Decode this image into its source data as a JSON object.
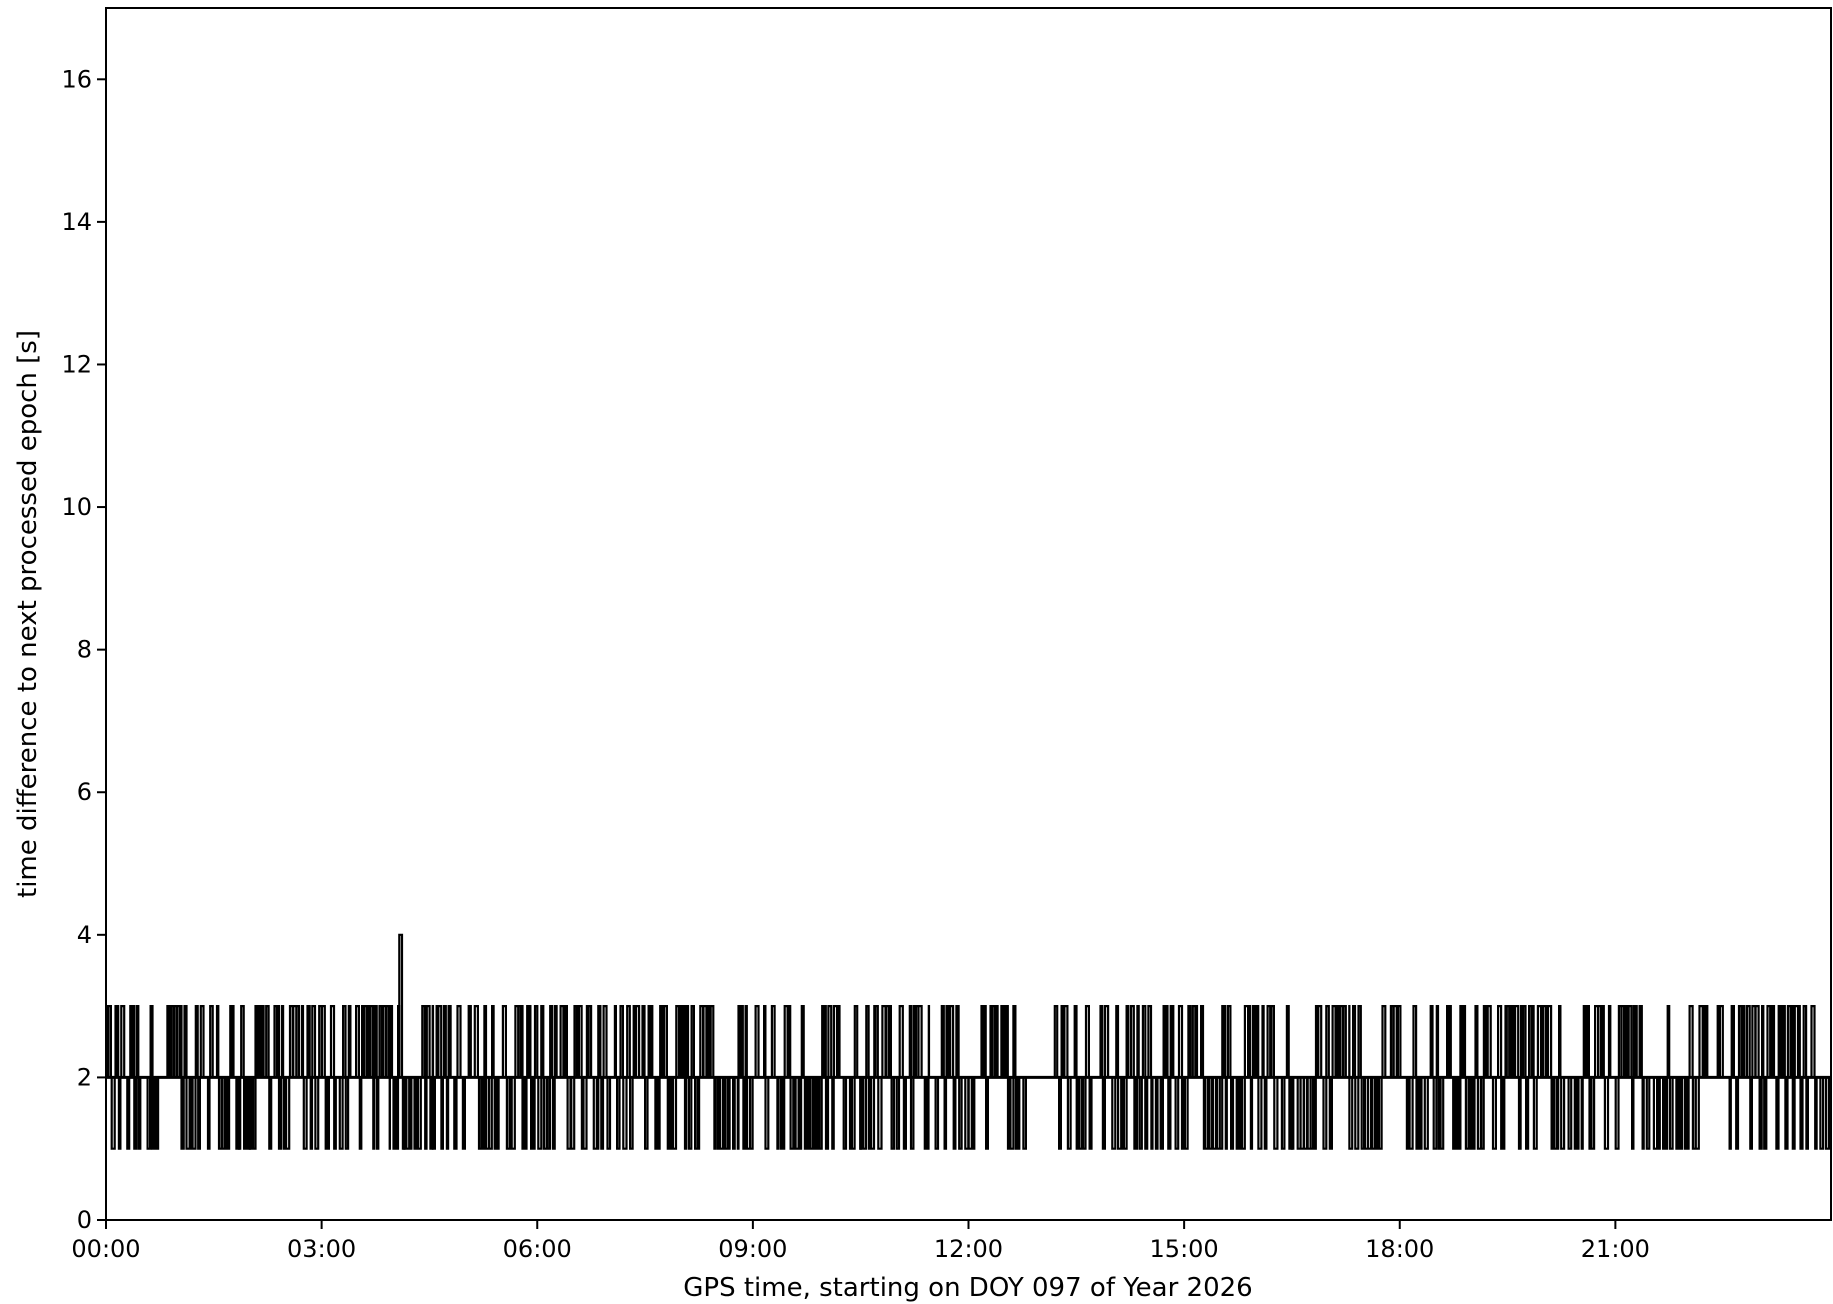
{
  "chart_data": {
    "type": "line",
    "title": "",
    "xlabel": "GPS time, starting on DOY 097 of Year 2026",
    "ylabel": "time difference to next processed epoch [s]",
    "xlim_hours": [
      0,
      24
    ],
    "ylim": [
      0,
      17
    ],
    "x_ticks": [
      {
        "value": 0,
        "label": "00:00"
      },
      {
        "value": 3,
        "label": "03:00"
      },
      {
        "value": 6,
        "label": "06:00"
      },
      {
        "value": 9,
        "label": "09:00"
      },
      {
        "value": 12,
        "label": "12:00"
      },
      {
        "value": 15,
        "label": "15:00"
      },
      {
        "value": 18,
        "label": "18:00"
      },
      {
        "value": 21,
        "label": "21:00"
      }
    ],
    "y_ticks": [
      {
        "value": 0,
        "label": "0"
      },
      {
        "value": 2,
        "label": "2"
      },
      {
        "value": 4,
        "label": "4"
      },
      {
        "value": 6,
        "label": "6"
      },
      {
        "value": 8,
        "label": "8"
      },
      {
        "value": 10,
        "label": "10"
      },
      {
        "value": 12,
        "label": "12"
      },
      {
        "value": 14,
        "label": "14"
      },
      {
        "value": 16,
        "label": "16"
      }
    ],
    "grid": false,
    "legend": "none",
    "line_color": "#000000",
    "series": [
      {
        "baseline_value": 2,
        "values_range": [
          1,
          4
        ],
        "segments": [
          {
            "start": 0.0,
            "end": 0.15,
            "high": 3,
            "low": 1
          },
          {
            "start": 0.15,
            "end": 0.45,
            "high": 3,
            "low": 1
          },
          {
            "start": 0.45,
            "end": 0.55,
            "high": 2,
            "low": 1
          },
          {
            "start": 0.55,
            "end": 0.62,
            "high": 3,
            "low": 1
          },
          {
            "start": 0.62,
            "end": 1.05,
            "high": 3,
            "low": 1
          },
          {
            "start": 1.05,
            "end": 1.12,
            "high": 4,
            "low": 1
          },
          {
            "start": 1.12,
            "end": 1.75,
            "high": 3,
            "low": 1
          },
          {
            "start": 1.75,
            "end": 1.85,
            "high": 4,
            "low": 1
          },
          {
            "start": 1.85,
            "end": 2.0,
            "high": 3,
            "low": 1
          },
          {
            "start": 2.0,
            "end": 2.08,
            "high": 4,
            "low": 1
          },
          {
            "start": 2.08,
            "end": 3.4,
            "high": 3,
            "low": 1
          },
          {
            "start": 3.4,
            "end": 3.48,
            "high": 2,
            "low": 2
          },
          {
            "start": 3.48,
            "end": 3.95,
            "high": 3,
            "low": 1
          },
          {
            "start": 3.95,
            "end": 4.0,
            "high": 4,
            "low": 1
          },
          {
            "start": 4.0,
            "end": 4.08,
            "high": 3,
            "low": 1
          },
          {
            "start": 4.08,
            "end": 4.15,
            "high": 4,
            "low": 1
          },
          {
            "start": 4.15,
            "end": 4.4,
            "high": 3,
            "low": 1
          },
          {
            "start": 4.4,
            "end": 4.55,
            "high": 3,
            "low": 1
          },
          {
            "start": 4.55,
            "end": 6.55,
            "high": 3,
            "low": 1
          },
          {
            "start": 6.55,
            "end": 6.85,
            "high": 3,
            "low": 1
          },
          {
            "start": 6.85,
            "end": 7.5,
            "high": 3,
            "low": 1
          },
          {
            "start": 7.5,
            "end": 8.8,
            "high": 3,
            "low": 1
          },
          {
            "start": 8.8,
            "end": 9.5,
            "high": 3,
            "low": 1
          },
          {
            "start": 9.5,
            "end": 10.5,
            "high": 3,
            "low": 1
          },
          {
            "start": 10.5,
            "end": 11.2,
            "high": 3,
            "low": 1
          },
          {
            "start": 11.2,
            "end": 11.45,
            "high": 3,
            "low": 1
          },
          {
            "start": 11.45,
            "end": 12.8,
            "high": 3,
            "low": 1
          },
          {
            "start": 12.8,
            "end": 13.2,
            "high": 2,
            "low": 2
          },
          {
            "start": 13.2,
            "end": 14.2,
            "high": 3,
            "low": 1
          },
          {
            "start": 14.2,
            "end": 14.85,
            "high": 3,
            "low": 1
          },
          {
            "start": 14.85,
            "end": 14.97,
            "high": 4,
            "low": 1
          },
          {
            "start": 14.97,
            "end": 16.5,
            "high": 3,
            "low": 1
          },
          {
            "start": 16.5,
            "end": 17.3,
            "high": 3,
            "low": 1
          },
          {
            "start": 17.3,
            "end": 18.1,
            "high": 3,
            "low": 1
          },
          {
            "start": 18.1,
            "end": 24.0,
            "high": 3,
            "low": 1
          }
        ]
      }
    ]
  }
}
